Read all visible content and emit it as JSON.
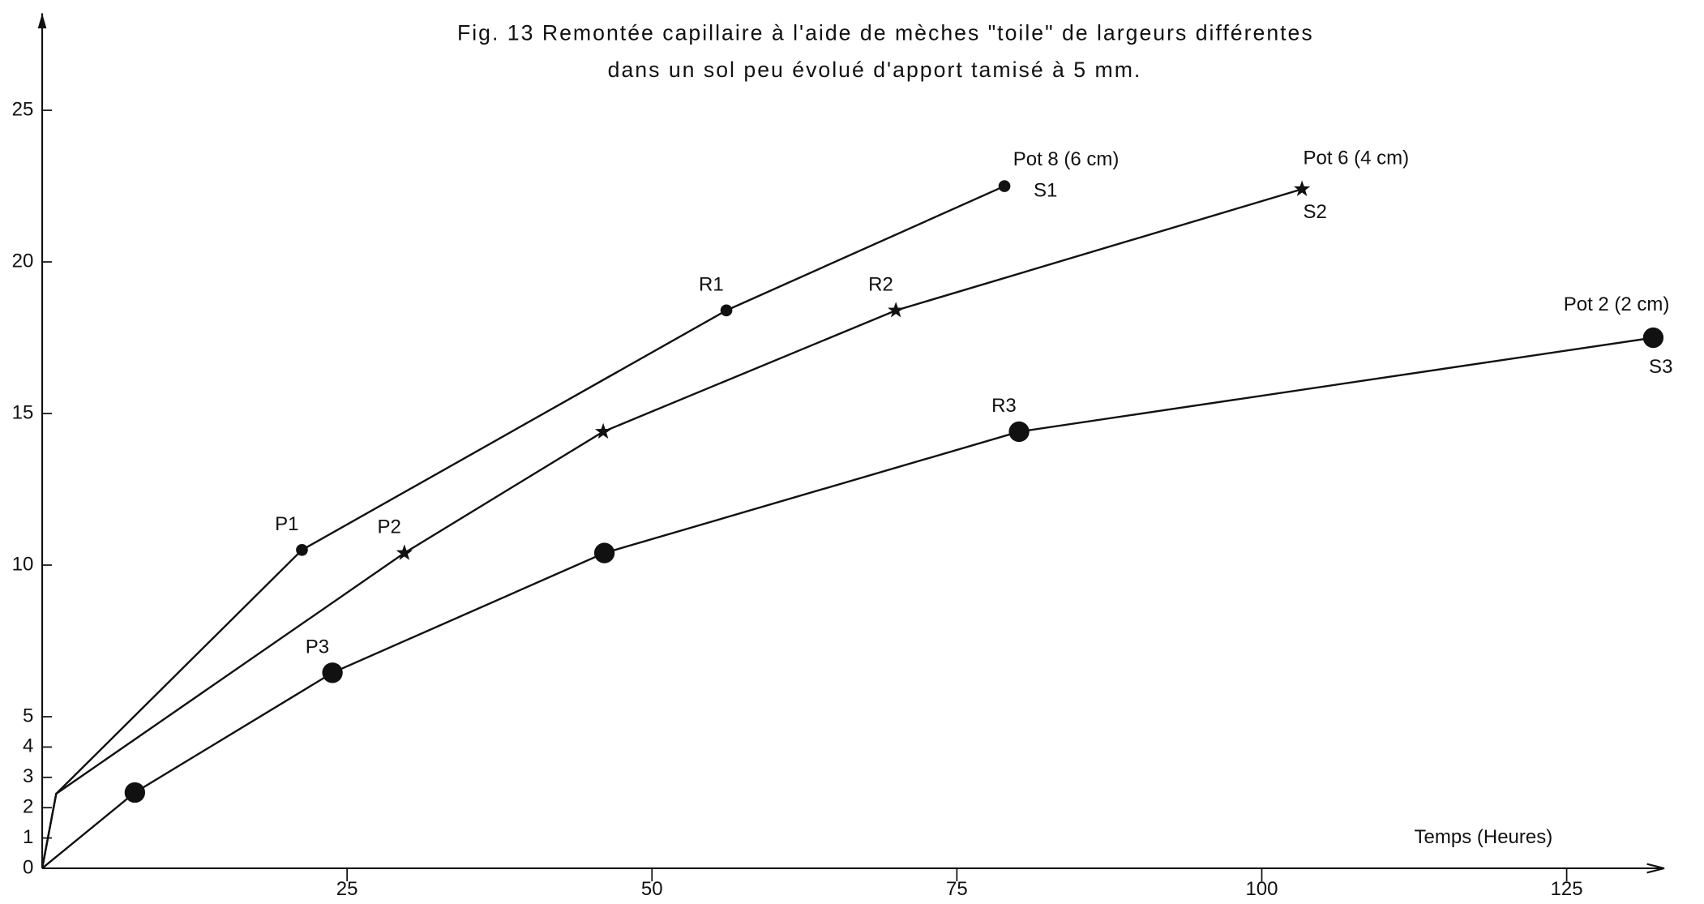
{
  "chart_data": {
    "type": "line",
    "title": [
      "Fig. 13  Remontée capillaire à l'aide de mèches \"toile\" de largeurs différentes",
      "dans un sol peu évolué d'apport tamisé à 5 mm."
    ],
    "x_label": "Temps (Heures)",
    "xlim": [
      0,
      133
    ],
    "ylim": [
      0,
      28.2
    ],
    "xticks": [
      25,
      50,
      75,
      100,
      125
    ],
    "yticks": [
      0,
      1,
      2,
      3,
      4,
      5,
      10,
      15,
      20,
      25
    ],
    "color": "#111111",
    "series": [
      {
        "name": "Pot 8 (6 cm)",
        "color": "#111111",
        "x": [
          0,
          1.15,
          21.3,
          56.1,
          78.9
        ],
        "values": [
          0,
          2.46,
          10.5,
          18.4,
          22.5
        ],
        "markers": [
          null,
          null,
          "dot",
          "dot",
          "dot"
        ],
        "point_labels": [
          null,
          null,
          "P1",
          "R1",
          "S1"
        ]
      },
      {
        "name": "Pot 6 (4 cm)",
        "color": "#111111",
        "x": [
          0,
          1.15,
          29.7,
          46.0,
          70.0,
          103.3
        ],
        "values": [
          0,
          2.46,
          10.4,
          14.4,
          18.4,
          22.4
        ],
        "markers": [
          null,
          null,
          "star",
          "star",
          "star",
          "star"
        ],
        "point_labels": [
          null,
          null,
          "P2",
          null,
          "R2",
          "S2"
        ]
      },
      {
        "name": "Pot 2 (2 cm)",
        "color": "#111111",
        "x": [
          0,
          7.6,
          23.8,
          46.1,
          80.1,
          132.1
        ],
        "values": [
          0,
          2.5,
          6.45,
          10.4,
          14.4,
          17.5
        ],
        "markers": [
          null,
          "big-dot",
          "big-dot",
          "big-dot",
          "big-dot",
          "big-dot"
        ],
        "point_labels": [
          null,
          null,
          "P3",
          null,
          "R3",
          "S3"
        ]
      }
    ]
  }
}
